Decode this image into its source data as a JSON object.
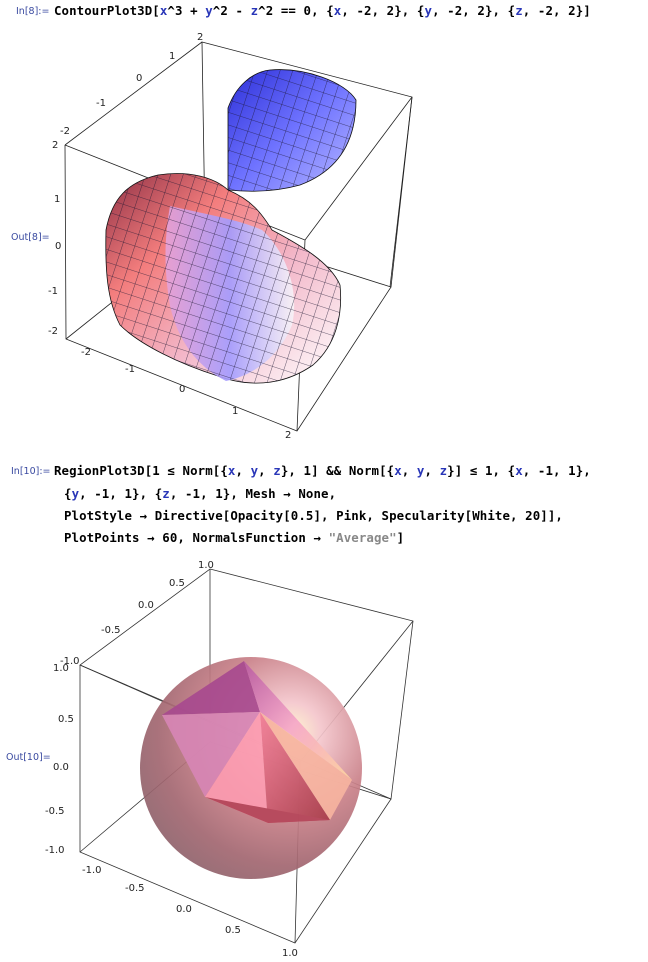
{
  "cells": [
    {
      "in_label": "In[8]:=",
      "out_label": "Out[8]=",
      "input_lines": [
        "ContourPlot3D[x^3 + y^2 - z^2 == 0, {x, -2, 2}, {y, -2, 2}, {z, -2, 2}]"
      ],
      "ticks": {
        "top": [
          "2",
          "1",
          "0",
          "-1",
          "-2"
        ],
        "left": [
          "2",
          "1",
          "0",
          "-1",
          "-2"
        ],
        "bottom": [
          "-2",
          "-1",
          "0",
          "1",
          "2"
        ]
      }
    },
    {
      "in_label": "In[10]:=",
      "out_label": "Out[10]=",
      "input_lines": [
        "RegionPlot3D[1 ≤ Norm[{x, y, z}, 1] && Norm[{x, y, z}] ≤ 1, {x, -1, 1},",
        "{y, -1, 1}, {z, -1, 1}, Mesh → None,",
        "PlotStyle → Directive[Opacity[0.5], Pink, Specularity[White, 20]],",
        "PlotPoints → 60, NormalsFunction → \"Average\"]"
      ],
      "ticks": {
        "top": [
          "1.0",
          "0.5",
          "0.0",
          "-0.5",
          "-1.0"
        ],
        "left": [
          "1.0",
          "0.5",
          "0.0",
          "-0.5",
          "-1.0"
        ],
        "bottom": [
          "-1.0",
          "-0.5",
          "0.0",
          "0.5",
          "1.0"
        ]
      }
    }
  ]
}
